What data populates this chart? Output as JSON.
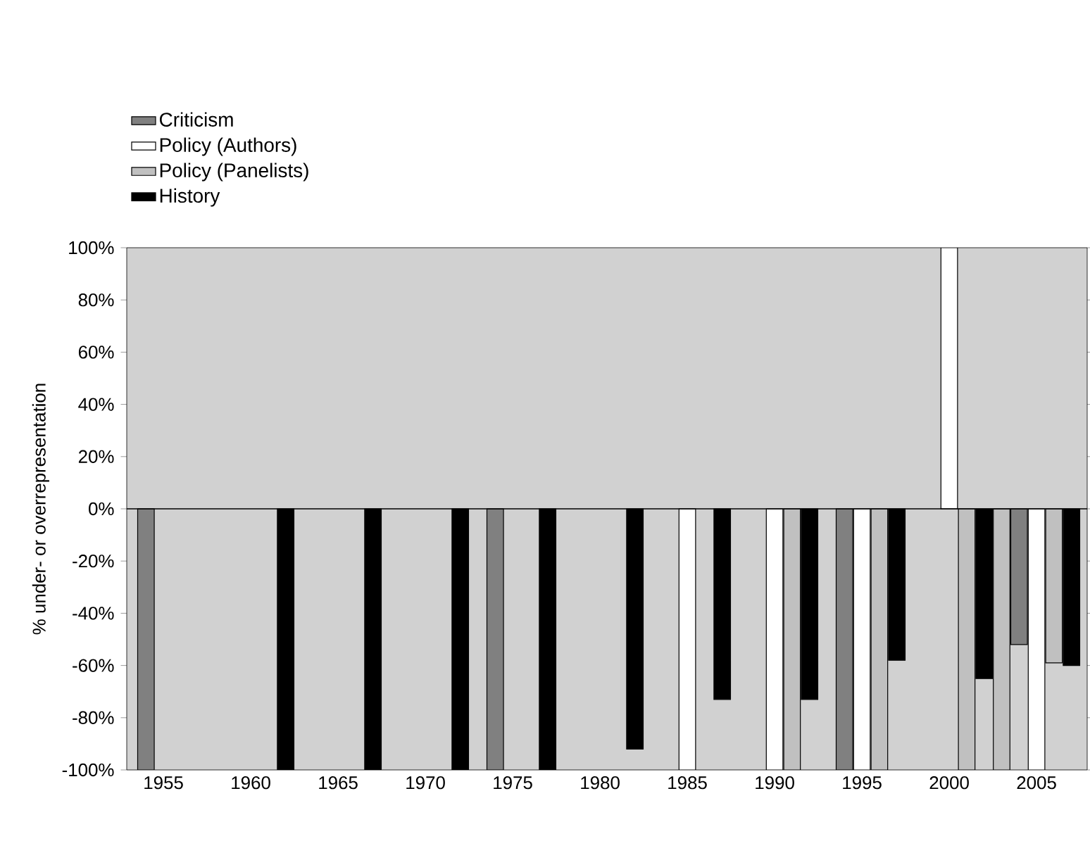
{
  "chart_data": {
    "type": "bar",
    "ylabel": "% under- or overrepresentation",
    "xlim": [
      1952.9,
      2007.9
    ],
    "xticks": [
      1955,
      1960,
      1965,
      1970,
      1975,
      1980,
      1985,
      1990,
      1995,
      2000,
      2005
    ],
    "ylim": [
      -100,
      100
    ],
    "yticks": [
      {
        "value": -100,
        "label": "-100%"
      },
      {
        "value": -80,
        "label": "-80%"
      },
      {
        "value": -60,
        "label": "-60%"
      },
      {
        "value": -40,
        "label": "-40%"
      },
      {
        "value": -20,
        "label": "-20%"
      },
      {
        "value": 0,
        "label": "0%"
      },
      {
        "value": 20,
        "label": "20%"
      },
      {
        "value": 40,
        "label": "40%"
      },
      {
        "value": 60,
        "label": "60%"
      },
      {
        "value": 80,
        "label": "80%"
      },
      {
        "value": 100,
        "label": "100%"
      }
    ],
    "legend": "top left",
    "series": [
      {
        "name": "Criticism",
        "color": "#808080",
        "x": [
          1954,
          1974,
          1994,
          2004
        ],
        "values": [
          -100,
          -100,
          -100,
          -52
        ]
      },
      {
        "name": "Policy (Authors)",
        "color": "#ffffff",
        "x": [
          1985,
          1990,
          1995,
          2000,
          2005
        ],
        "values": [
          -100,
          -100,
          -100,
          100,
          -100
        ]
      },
      {
        "name": "Policy (Panelists)",
        "color": "#c0c0c0",
        "x": [
          1991,
          1996,
          2001,
          2003,
          2006
        ],
        "values": [
          -100,
          -100,
          -100,
          -100,
          -59
        ]
      },
      {
        "name": "History",
        "color": "#000000",
        "x": [
          1962,
          1967,
          1972,
          1977,
          1982,
          1987,
          1992,
          1997,
          2002,
          2007
        ],
        "values": [
          -100,
          -100,
          -100,
          -100,
          -92,
          -73,
          -73,
          -58,
          -65,
          -60
        ]
      }
    ]
  }
}
